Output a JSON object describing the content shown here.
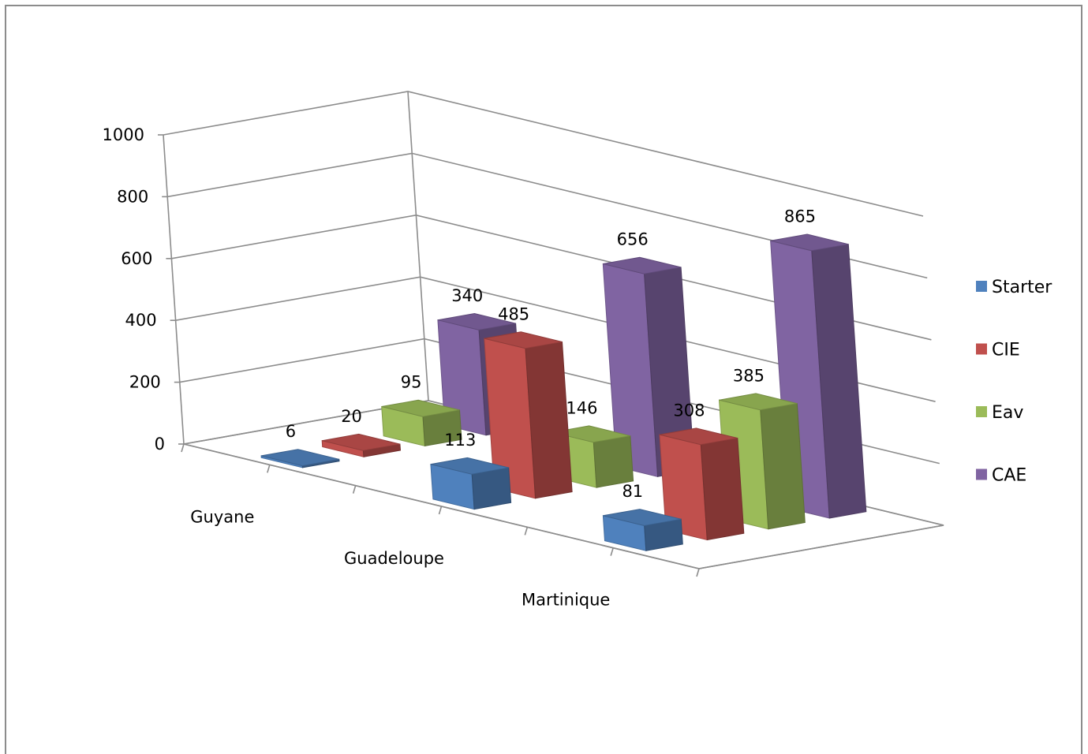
{
  "chart_data": {
    "type": "bar",
    "subtype": "3d-clustered-column",
    "title": "",
    "xlabel": "",
    "ylabel": "",
    "categories": [
      "Guyane",
      "Guadeloupe",
      "Martinique"
    ],
    "series": [
      {
        "name": "Starter",
        "color": "#4f81bd",
        "values": [
          6,
          113,
          81
        ]
      },
      {
        "name": "CIE",
        "color": "#c0504d",
        "values": [
          20,
          485,
          308
        ]
      },
      {
        "name": "Eav",
        "color": "#9bbb59",
        "values": [
          95,
          146,
          385
        ]
      },
      {
        "name": "CAE",
        "color": "#8064a2",
        "values": [
          340,
          656,
          865
        ]
      }
    ],
    "yticks": [
      0,
      200,
      400,
      600,
      800,
      1000
    ],
    "ylim": [
      0,
      1000
    ],
    "grid": true,
    "legend": "right",
    "data_labels": true
  }
}
